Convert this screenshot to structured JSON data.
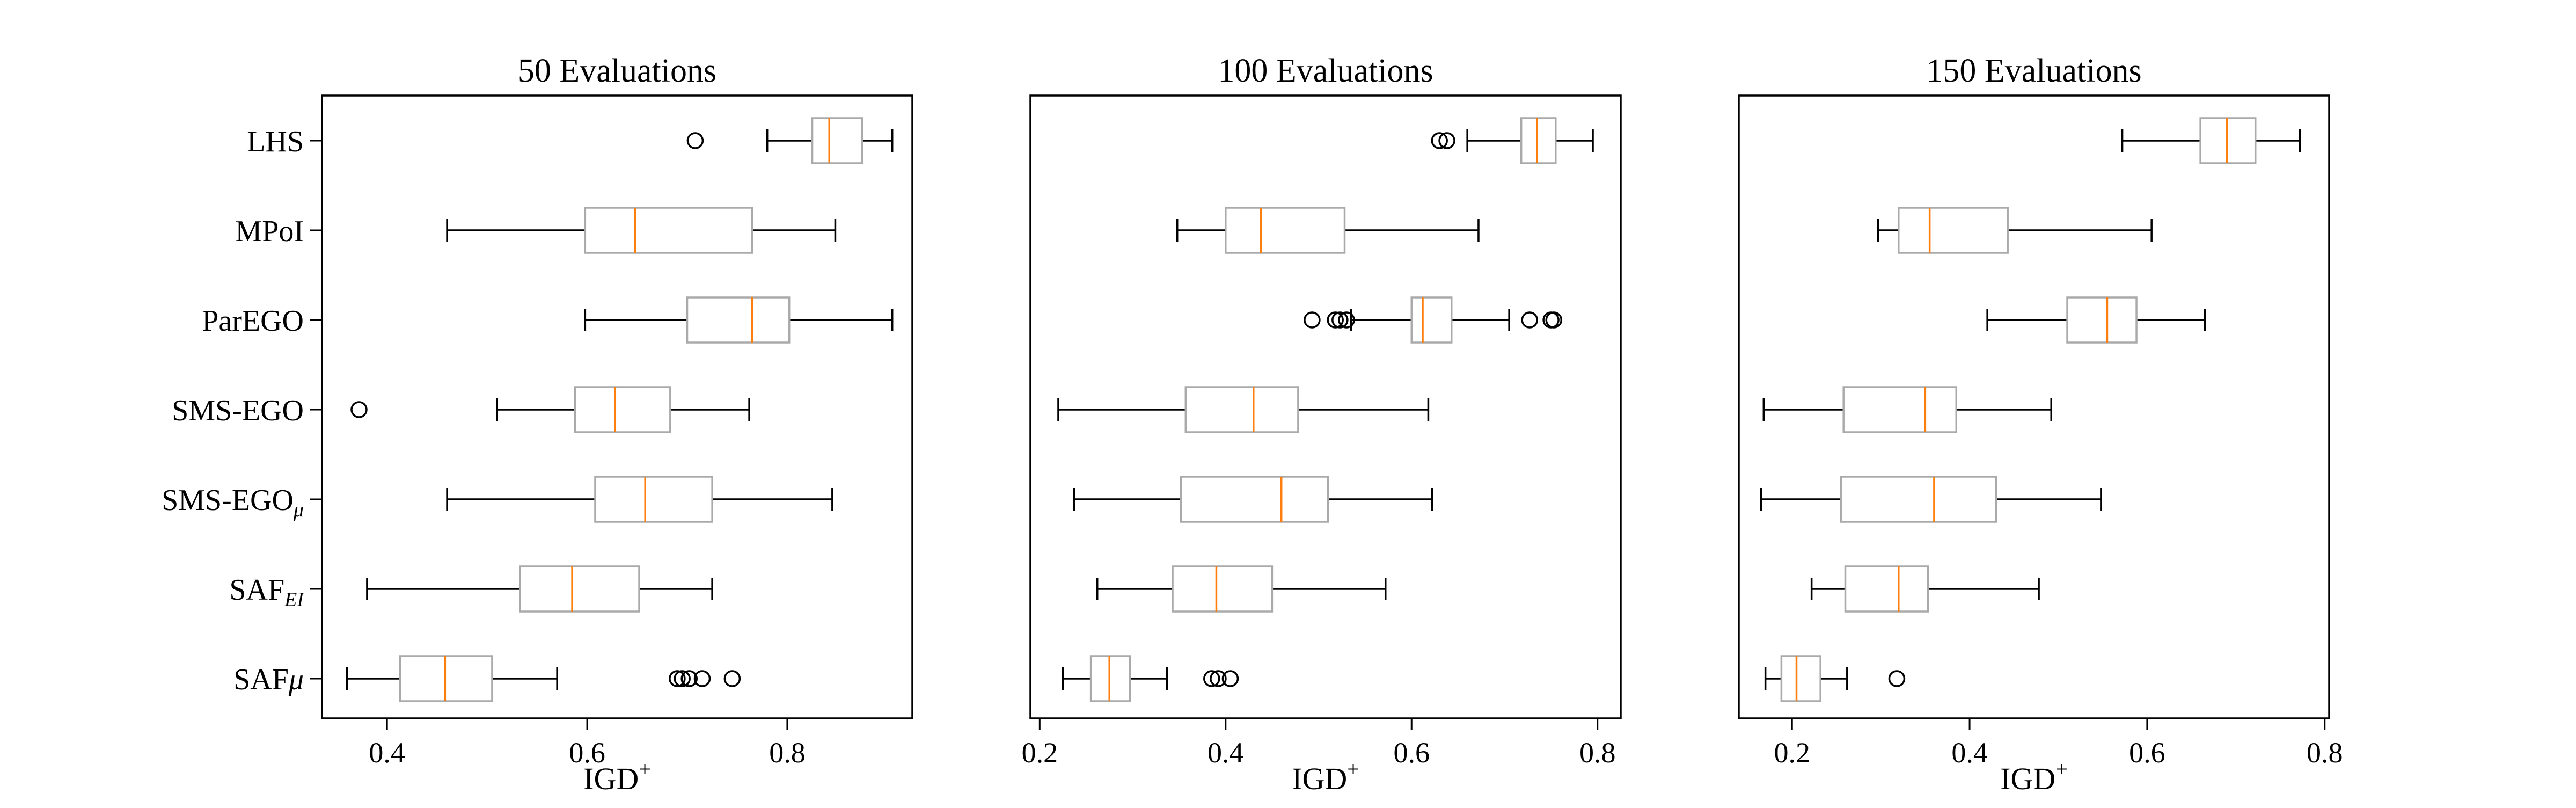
{
  "chart_data": [
    {
      "type": "boxplot",
      "title": "50 Evaluations",
      "xlabel": "IGD",
      "xlabel_superscript": "+",
      "xlim": [
        0.335,
        0.925
      ],
      "xticks": [
        0.4,
        0.6,
        0.8
      ],
      "xtick_labels": [
        "0.4",
        "0.6",
        "0.8"
      ],
      "show_category_labels": true,
      "series": [
        {
          "label": "LHS",
          "whisker_low": 0.78,
          "q1": 0.825,
          "median": 0.842,
          "q3": 0.875,
          "whisker_high": 0.905,
          "outliers": [
            0.708
          ]
        },
        {
          "label": "MPoI",
          "whisker_low": 0.46,
          "q1": 0.598,
          "median": 0.648,
          "q3": 0.765,
          "whisker_high": 0.848,
          "outliers": []
        },
        {
          "label": "ParEGO",
          "whisker_low": 0.598,
          "q1": 0.7,
          "median": 0.765,
          "q3": 0.802,
          "whisker_high": 0.905,
          "outliers": []
        },
        {
          "label": "SMS-EGO",
          "whisker_low": 0.51,
          "q1": 0.588,
          "median": 0.628,
          "q3": 0.683,
          "whisker_high": 0.762,
          "outliers": [
            0.372
          ]
        },
        {
          "label": "SMS-EGO",
          "label_subscript": "μ",
          "whisker_low": 0.46,
          "q1": 0.608,
          "median": 0.658,
          "q3": 0.725,
          "whisker_high": 0.845,
          "outliers": []
        },
        {
          "label": "SAF",
          "label_subscript": "EI",
          "whisker_low": 0.38,
          "q1": 0.533,
          "median": 0.585,
          "q3": 0.652,
          "whisker_high": 0.725,
          "outliers": []
        },
        {
          "label": "SAF",
          "label_suffix": "μ",
          "whisker_low": 0.36,
          "q1": 0.413,
          "median": 0.458,
          "q3": 0.505,
          "whisker_high": 0.57,
          "outliers": [
            0.69,
            0.695,
            0.702,
            0.715,
            0.745
          ]
        }
      ]
    },
    {
      "type": "boxplot",
      "title": "100 Evaluations",
      "xlabel": "IGD",
      "xlabel_superscript": "+",
      "xlim": [
        0.19,
        0.825
      ],
      "xticks": [
        0.2,
        0.4,
        0.6,
        0.8
      ],
      "xtick_labels": [
        "0.2",
        "0.4",
        "0.6",
        "0.8"
      ],
      "show_category_labels": false,
      "series": [
        {
          "label": "LHS",
          "whisker_low": 0.66,
          "q1": 0.718,
          "median": 0.735,
          "q3": 0.755,
          "whisker_high": 0.795,
          "outliers": [
            0.63,
            0.638
          ]
        },
        {
          "label": "MPoI",
          "whisker_low": 0.348,
          "q1": 0.4,
          "median": 0.438,
          "q3": 0.528,
          "whisker_high": 0.672,
          "outliers": []
        },
        {
          "label": "ParEGO",
          "whisker_low": 0.535,
          "q1": 0.6,
          "median": 0.612,
          "q3": 0.643,
          "whisker_high": 0.705,
          "outliers": [
            0.493,
            0.518,
            0.523,
            0.53,
            0.727,
            0.75,
            0.753
          ]
        },
        {
          "label": "SMS-EGO",
          "whisker_low": 0.22,
          "q1": 0.357,
          "median": 0.43,
          "q3": 0.478,
          "whisker_high": 0.618,
          "outliers": []
        },
        {
          "label": "SMS-EGO",
          "label_subscript": "μ",
          "whisker_low": 0.237,
          "q1": 0.352,
          "median": 0.46,
          "q3": 0.51,
          "whisker_high": 0.622,
          "outliers": []
        },
        {
          "label": "SAF",
          "label_subscript": "EI",
          "whisker_low": 0.262,
          "q1": 0.343,
          "median": 0.39,
          "q3": 0.45,
          "whisker_high": 0.572,
          "outliers": []
        },
        {
          "label": "SAF",
          "label_suffix": "μ",
          "whisker_low": 0.225,
          "q1": 0.255,
          "median": 0.275,
          "q3": 0.297,
          "whisker_high": 0.337,
          "outliers": [
            0.385,
            0.392,
            0.405
          ]
        }
      ]
    },
    {
      "type": "boxplot",
      "title": "150 Evaluations",
      "xlabel": "IGD",
      "xlabel_superscript": "+",
      "xlim": [
        0.14,
        0.805
      ],
      "xticks": [
        0.2,
        0.4,
        0.6,
        0.8
      ],
      "xtick_labels": [
        "0.2",
        "0.4",
        "0.6",
        "0.8"
      ],
      "show_category_labels": false,
      "series": [
        {
          "label": "LHS",
          "whisker_low": 0.572,
          "q1": 0.66,
          "median": 0.69,
          "q3": 0.722,
          "whisker_high": 0.772,
          "outliers": []
        },
        {
          "label": "MPoI",
          "whisker_low": 0.297,
          "q1": 0.32,
          "median": 0.355,
          "q3": 0.443,
          "whisker_high": 0.605,
          "outliers": []
        },
        {
          "label": "ParEGO",
          "whisker_low": 0.42,
          "q1": 0.51,
          "median": 0.555,
          "q3": 0.588,
          "whisker_high": 0.665,
          "outliers": []
        },
        {
          "label": "SMS-EGO",
          "whisker_low": 0.168,
          "q1": 0.258,
          "median": 0.35,
          "q3": 0.385,
          "whisker_high": 0.492,
          "outliers": []
        },
        {
          "label": "SMS-EGO",
          "label_subscript": "μ",
          "whisker_low": 0.165,
          "q1": 0.255,
          "median": 0.36,
          "q3": 0.43,
          "whisker_high": 0.548,
          "outliers": []
        },
        {
          "label": "SAF",
          "label_subscript": "EI",
          "whisker_low": 0.222,
          "q1": 0.26,
          "median": 0.32,
          "q3": 0.353,
          "whisker_high": 0.478,
          "outliers": []
        },
        {
          "label": "SAF",
          "label_suffix": "μ",
          "whisker_low": 0.17,
          "q1": 0.188,
          "median": 0.205,
          "q3": 0.232,
          "whisker_high": 0.262,
          "outliers": [
            0.318
          ]
        }
      ]
    }
  ],
  "colors": {
    "box": "#aaaaaa",
    "median": "#ff7f0e",
    "whisker": "#000000",
    "outlier": "#000000"
  }
}
